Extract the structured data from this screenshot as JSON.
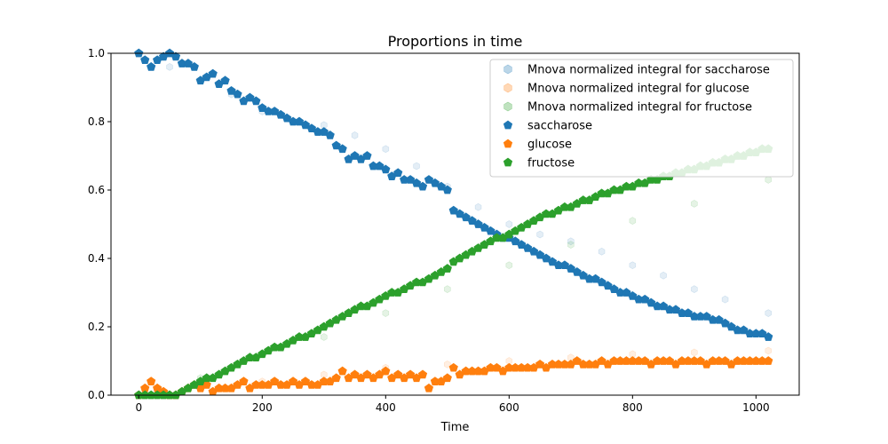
{
  "chart_data": {
    "type": "scatter",
    "title": "Proportions in time",
    "xlabel": "Time",
    "ylabel": "",
    "xlim": [
      -45,
      1070
    ],
    "ylim": [
      0,
      1
    ],
    "xticks": [
      "0",
      "200",
      "400",
      "600",
      "800",
      "1000"
    ],
    "yticks": [
      "0.0",
      "0.2",
      "0.4",
      "0.6",
      "0.8",
      "1.0"
    ],
    "legend_position": "top-right",
    "grid": false,
    "series": [
      {
        "name": "Mnova normalized integral for saccharose",
        "color": "#1f77b4",
        "marker": "hexagon",
        "faded": true,
        "x": [
          0,
          50,
          100,
          150,
          200,
          250,
          300,
          350,
          400,
          450,
          500,
          550,
          600,
          650,
          700,
          750,
          800,
          850,
          900,
          950,
          1020
        ],
        "y": [
          1.0,
          0.96,
          0.92,
          0.88,
          0.83,
          0.8,
          0.79,
          0.76,
          0.72,
          0.67,
          0.61,
          0.55,
          0.5,
          0.47,
          0.45,
          0.42,
          0.38,
          0.35,
          0.31,
          0.28,
          0.24
        ]
      },
      {
        "name": "Mnova normalized integral for glucose",
        "color": "#ff7f0e",
        "marker": "hexagon",
        "faded": true,
        "x": [
          0,
          100,
          200,
          300,
          400,
          500,
          600,
          700,
          800,
          900,
          1020
        ],
        "y": [
          0.0,
          0.02,
          0.04,
          0.06,
          0.08,
          0.09,
          0.1,
          0.11,
          0.12,
          0.125,
          0.13
        ]
      },
      {
        "name": "Mnova normalized integral for fructose",
        "color": "#2ca02c",
        "marker": "hexagon",
        "faded": true,
        "x": [
          0,
          100,
          200,
          300,
          400,
          500,
          600,
          700,
          800,
          900,
          1020
        ],
        "y": [
          0.0,
          0.05,
          0.12,
          0.17,
          0.24,
          0.31,
          0.38,
          0.44,
          0.51,
          0.56,
          0.63
        ]
      },
      {
        "name": "saccharose",
        "color": "#1f77b4",
        "marker": "pentagon",
        "faded": false,
        "x": [
          0,
          10,
          20,
          30,
          40,
          50,
          60,
          70,
          80,
          90,
          100,
          110,
          120,
          130,
          140,
          150,
          160,
          170,
          180,
          190,
          200,
          210,
          220,
          230,
          240,
          250,
          260,
          270,
          280,
          290,
          300,
          310,
          320,
          330,
          340,
          350,
          360,
          370,
          380,
          390,
          400,
          410,
          420,
          430,
          440,
          450,
          460,
          470,
          480,
          490,
          500,
          510,
          520,
          530,
          540,
          550,
          560,
          570,
          580,
          590,
          600,
          610,
          620,
          630,
          640,
          650,
          660,
          670,
          680,
          690,
          700,
          710,
          720,
          730,
          740,
          750,
          760,
          770,
          780,
          790,
          800,
          810,
          820,
          830,
          840,
          850,
          860,
          870,
          880,
          890,
          900,
          910,
          920,
          930,
          940,
          950,
          960,
          970,
          980,
          990,
          1000,
          1010,
          1020
        ],
        "y": [
          1.0,
          0.98,
          0.96,
          0.98,
          0.99,
          1.0,
          0.99,
          0.97,
          0.97,
          0.96,
          0.92,
          0.93,
          0.94,
          0.91,
          0.92,
          0.89,
          0.88,
          0.86,
          0.87,
          0.86,
          0.84,
          0.83,
          0.83,
          0.82,
          0.81,
          0.8,
          0.8,
          0.79,
          0.78,
          0.77,
          0.77,
          0.76,
          0.73,
          0.72,
          0.69,
          0.7,
          0.69,
          0.7,
          0.67,
          0.67,
          0.66,
          0.64,
          0.65,
          0.63,
          0.63,
          0.62,
          0.61,
          0.63,
          0.62,
          0.61,
          0.6,
          0.54,
          0.53,
          0.52,
          0.51,
          0.5,
          0.49,
          0.48,
          0.47,
          0.46,
          0.46,
          0.45,
          0.44,
          0.43,
          0.42,
          0.41,
          0.4,
          0.39,
          0.38,
          0.38,
          0.37,
          0.36,
          0.35,
          0.34,
          0.34,
          0.33,
          0.32,
          0.31,
          0.3,
          0.3,
          0.29,
          0.28,
          0.28,
          0.27,
          0.26,
          0.26,
          0.25,
          0.25,
          0.24,
          0.24,
          0.23,
          0.23,
          0.23,
          0.22,
          0.22,
          0.21,
          0.2,
          0.19,
          0.19,
          0.18,
          0.18,
          0.18,
          0.17
        ]
      },
      {
        "name": "glucose",
        "color": "#ff7f0e",
        "marker": "pentagon",
        "faded": false,
        "x": [
          0,
          10,
          20,
          30,
          40,
          50,
          60,
          70,
          80,
          90,
          100,
          110,
          120,
          130,
          140,
          150,
          160,
          170,
          180,
          190,
          200,
          210,
          220,
          230,
          240,
          250,
          260,
          270,
          280,
          290,
          300,
          310,
          320,
          330,
          340,
          350,
          360,
          370,
          380,
          390,
          400,
          410,
          420,
          430,
          440,
          450,
          460,
          470,
          480,
          490,
          500,
          510,
          520,
          530,
          540,
          550,
          560,
          570,
          580,
          590,
          600,
          610,
          620,
          630,
          640,
          650,
          660,
          670,
          680,
          690,
          700,
          710,
          720,
          730,
          740,
          750,
          760,
          770,
          780,
          790,
          800,
          810,
          820,
          830,
          840,
          850,
          860,
          870,
          880,
          890,
          900,
          910,
          920,
          930,
          940,
          950,
          960,
          970,
          980,
          990,
          1000,
          1010,
          1020
        ],
        "y": [
          0.0,
          0.02,
          0.04,
          0.02,
          0.01,
          0.0,
          0.0,
          0.01,
          0.02,
          0.03,
          0.02,
          0.03,
          0.01,
          0.02,
          0.02,
          0.02,
          0.03,
          0.04,
          0.02,
          0.03,
          0.03,
          0.03,
          0.04,
          0.03,
          0.03,
          0.04,
          0.03,
          0.04,
          0.03,
          0.03,
          0.04,
          0.04,
          0.05,
          0.07,
          0.05,
          0.06,
          0.05,
          0.06,
          0.05,
          0.06,
          0.07,
          0.05,
          0.06,
          0.05,
          0.06,
          0.05,
          0.06,
          0.02,
          0.04,
          0.04,
          0.05,
          0.08,
          0.06,
          0.07,
          0.07,
          0.07,
          0.07,
          0.08,
          0.08,
          0.07,
          0.08,
          0.08,
          0.08,
          0.08,
          0.08,
          0.09,
          0.08,
          0.09,
          0.09,
          0.09,
          0.09,
          0.1,
          0.09,
          0.09,
          0.09,
          0.1,
          0.09,
          0.1,
          0.1,
          0.1,
          0.1,
          0.1,
          0.1,
          0.09,
          0.1,
          0.1,
          0.1,
          0.09,
          0.1,
          0.1,
          0.1,
          0.1,
          0.09,
          0.1,
          0.1,
          0.1,
          0.09,
          0.1,
          0.1,
          0.1,
          0.1,
          0.1,
          0.1
        ]
      },
      {
        "name": "fructose",
        "color": "#2ca02c",
        "marker": "pentagon",
        "faded": false,
        "x": [
          0,
          10,
          20,
          30,
          40,
          50,
          60,
          70,
          80,
          90,
          100,
          110,
          120,
          130,
          140,
          150,
          160,
          170,
          180,
          190,
          200,
          210,
          220,
          230,
          240,
          250,
          260,
          270,
          280,
          290,
          300,
          310,
          320,
          330,
          340,
          350,
          360,
          370,
          380,
          390,
          400,
          410,
          420,
          430,
          440,
          450,
          460,
          470,
          480,
          490,
          500,
          510,
          520,
          530,
          540,
          550,
          560,
          570,
          580,
          590,
          600,
          610,
          620,
          630,
          640,
          650,
          660,
          670,
          680,
          690,
          700,
          710,
          720,
          730,
          740,
          750,
          760,
          770,
          780,
          790,
          800,
          810,
          820,
          830,
          840,
          850,
          860,
          870,
          880,
          890,
          900,
          910,
          920,
          930,
          940,
          950,
          960,
          970,
          980,
          990,
          1000,
          1010,
          1020
        ],
        "y": [
          0.0,
          0.0,
          0.0,
          0.0,
          0.0,
          0.0,
          0.0,
          0.01,
          0.02,
          0.03,
          0.04,
          0.05,
          0.05,
          0.06,
          0.07,
          0.08,
          0.09,
          0.1,
          0.11,
          0.11,
          0.12,
          0.13,
          0.14,
          0.14,
          0.15,
          0.16,
          0.17,
          0.17,
          0.18,
          0.19,
          0.2,
          0.21,
          0.22,
          0.23,
          0.24,
          0.25,
          0.26,
          0.26,
          0.27,
          0.28,
          0.29,
          0.3,
          0.3,
          0.31,
          0.32,
          0.33,
          0.33,
          0.34,
          0.35,
          0.36,
          0.37,
          0.39,
          0.4,
          0.41,
          0.42,
          0.43,
          0.44,
          0.45,
          0.46,
          0.46,
          0.47,
          0.48,
          0.49,
          0.5,
          0.51,
          0.52,
          0.53,
          0.53,
          0.54,
          0.55,
          0.55,
          0.56,
          0.57,
          0.57,
          0.58,
          0.59,
          0.59,
          0.6,
          0.6,
          0.61,
          0.61,
          0.62,
          0.62,
          0.63,
          0.63,
          0.64,
          0.64,
          0.65,
          0.65,
          0.66,
          0.66,
          0.67,
          0.67,
          0.68,
          0.68,
          0.69,
          0.69,
          0.7,
          0.7,
          0.71,
          0.71,
          0.72,
          0.72
        ]
      }
    ]
  }
}
